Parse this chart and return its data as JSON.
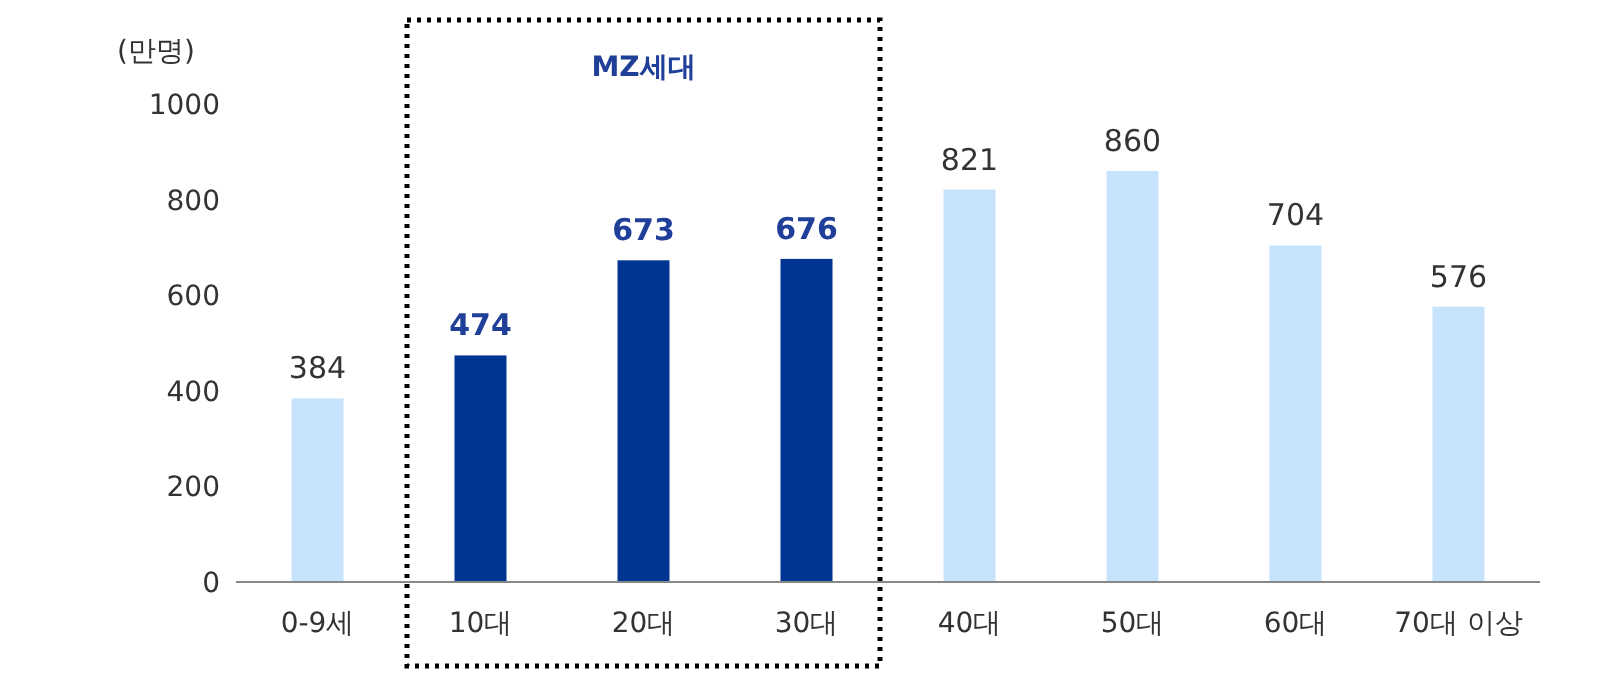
{
  "chart_data": {
    "type": "bar",
    "ylabel": "(만명)",
    "categories": [
      "0-9세",
      "10대",
      "20대",
      "30대",
      "40대",
      "50대",
      "60대",
      "70대 이상"
    ],
    "values": [
      384,
      474,
      673,
      676,
      821,
      860,
      704,
      576
    ],
    "colors": [
      "#c5e3fb",
      "#003594",
      "#003594",
      "#003594",
      "#c5e3fb",
      "#c5e3fb",
      "#c5e3fb",
      "#c5e3fb"
    ],
    "ylim": [
      0,
      1000
    ],
    "yticks": [
      0,
      200,
      400,
      600,
      800,
      1000
    ],
    "grid": false,
    "data_labels": true,
    "annotations": [
      "MZ세대"
    ]
  }
}
